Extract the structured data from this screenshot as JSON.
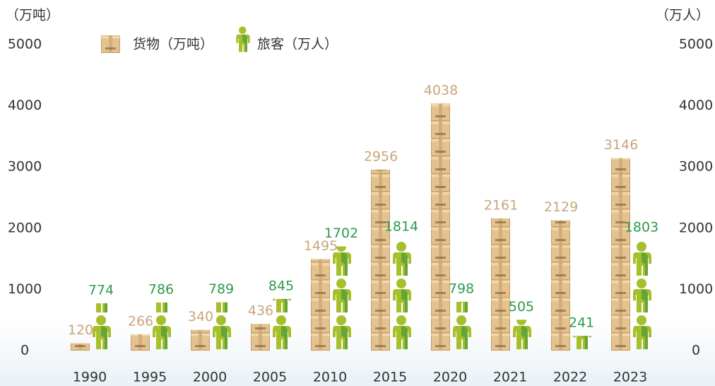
{
  "chart_data": {
    "type": "pictogram-bar",
    "y_label": "（万吨）",
    "y2_label": "（万人）",
    "categories": [
      "1990",
      "1995",
      "2000",
      "2005",
      "2010",
      "2015",
      "2020",
      "2021",
      "2022",
      "2023"
    ],
    "series": [
      {
        "name": "货物（万吨）",
        "color": "#c9a57c",
        "values": [
          120,
          266,
          340,
          436,
          1495,
          2956,
          4038,
          2161,
          2129,
          3146
        ]
      },
      {
        "name": "旅客（万人）",
        "color": "#2e9b4b",
        "axis": "y2",
        "values": [
          774,
          786,
          789,
          845,
          1702,
          1814,
          798,
          505,
          241,
          1803
        ]
      }
    ],
    "ylim": [
      0,
      5000
    ],
    "yticks": [
      0,
      1000,
      2000,
      3000,
      4000,
      5000
    ],
    "y2lim": [
      0,
      5000
    ],
    "y2ticks": [
      0,
      1000,
      2000,
      3000,
      4000,
      5000
    ],
    "legend": "top"
  }
}
